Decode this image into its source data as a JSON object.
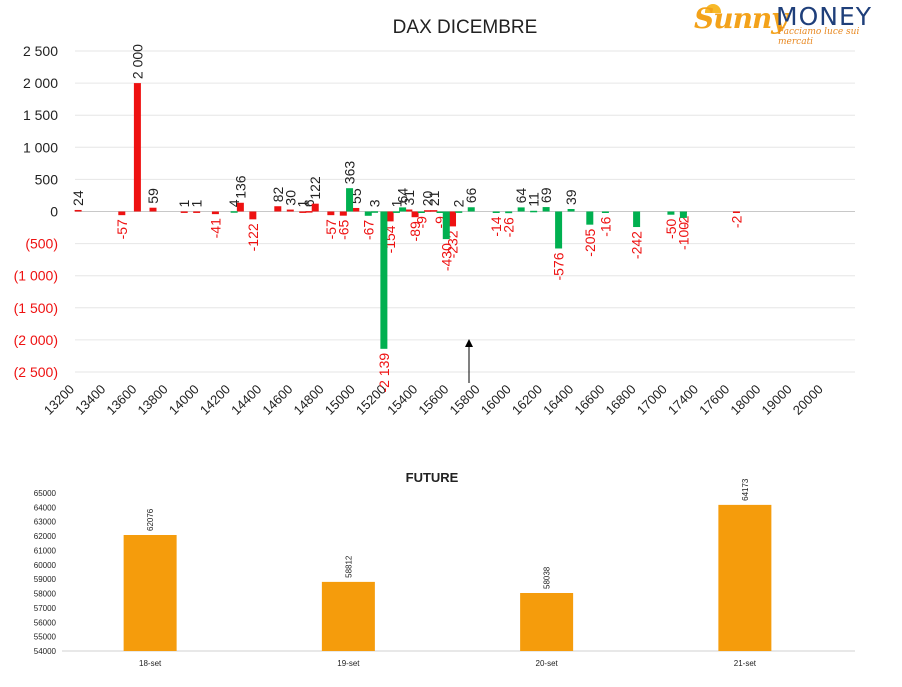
{
  "logo": {
    "brand_left": "Sunny",
    "brand_right": "MONEY",
    "tagline": "Facciamo luce sui mercati"
  },
  "colors": {
    "positive": "#00b050",
    "negative": "#ee1111",
    "future_bar": "#f59c0c",
    "negative_label": "#ee1111",
    "text": "#222222",
    "grid": "#e6e6e6"
  },
  "chart_data": [
    {
      "type": "bar",
      "title": "DAX DICEMBRE",
      "categories": [
        "13200",
        "13400",
        "13600",
        "13800",
        "14000",
        "14200",
        "14400",
        "14600",
        "14800",
        "15000",
        "15200",
        "15400",
        "15600",
        "15800",
        "16000",
        "16200",
        "16400",
        "16600",
        "16800",
        "17000",
        "17400",
        "17600",
        "18000",
        "19000",
        "20000"
      ],
      "ylim": [
        -2500,
        2500
      ],
      "yticks": [
        2500,
        2000,
        1500,
        1000,
        500,
        0,
        -500,
        -1000,
        -1500,
        -2000,
        -2500
      ],
      "ytick_labels": [
        "2 500",
        "2 000",
        "1 500",
        "1 000",
        "500",
        "0",
        "(500)",
        "(1 000)",
        "(1 500)",
        "(2 000)",
        "(2 500)"
      ],
      "grid": true,
      "annotation": "arrow pointing up near 15600",
      "series": [
        {
          "color": "red",
          "points": [
            {
              "x": 0.1,
              "value": 24
            },
            {
              "x": 1.5,
              "value": -57
            },
            {
              "x": 2.0,
              "value": 2000
            },
            {
              "x": 2.5,
              "value": 59
            },
            {
              "x": 3.5,
              "value": 1
            },
            {
              "x": 3.9,
              "value": 1
            },
            {
              "x": 4.5,
              "value": -41
            },
            {
              "x": 5.3,
              "value": 136
            },
            {
              "x": 5.7,
              "value": -122
            },
            {
              "x": 6.5,
              "value": 82
            },
            {
              "x": 6.9,
              "value": 30
            },
            {
              "x": 7.3,
              "value": 1
            },
            {
              "x": 7.5,
              "value": 6
            },
            {
              "x": 7.7,
              "value": 122
            },
            {
              "x": 8.2,
              "value": -57
            },
            {
              "x": 8.6,
              "value": -65
            },
            {
              "x": 9.0,
              "value": 55
            },
            {
              "x": 10.1,
              "value": -154
            },
            {
              "x": 10.7,
              "value": 31
            },
            {
              "x": 10.9,
              "value": -89
            },
            {
              "x": 11.3,
              "value": 20
            },
            {
              "x": 11.5,
              "value": 21
            },
            {
              "x": 12.1,
              "value": -232
            },
            {
              "x": 19.5,
              "value": -2
            },
            {
              "x": 21.2,
              "value": -2
            }
          ]
        },
        {
          "color": "green",
          "points": [
            {
              "x": 5.1,
              "value": 4
            },
            {
              "x": 8.8,
              "value": 363
            },
            {
              "x": 9.4,
              "value": -67
            },
            {
              "x": 9.6,
              "value": 3
            },
            {
              "x": 9.9,
              "value": -2139
            },
            {
              "x": 10.3,
              "value": 1
            },
            {
              "x": 10.5,
              "value": 64
            },
            {
              "x": 11.1,
              "value": -9
            },
            {
              "x": 11.7,
              "value": -9
            },
            {
              "x": 11.9,
              "value": -430
            },
            {
              "x": 12.3,
              "value": 2
            },
            {
              "x": 12.7,
              "value": 66
            },
            {
              "x": 13.5,
              "value": -14
            },
            {
              "x": 13.9,
              "value": -26
            },
            {
              "x": 14.3,
              "value": 64
            },
            {
              "x": 14.7,
              "value": 11
            },
            {
              "x": 15.1,
              "value": 69
            },
            {
              "x": 15.5,
              "value": -576
            },
            {
              "x": 15.9,
              "value": 39
            },
            {
              "x": 16.5,
              "value": -205
            },
            {
              "x": 17.0,
              "value": -16
            },
            {
              "x": 18.0,
              "value": -242
            },
            {
              "x": 19.1,
              "value": -50
            },
            {
              "x": 19.5,
              "value": -100
            }
          ]
        }
      ]
    },
    {
      "type": "bar",
      "title": "FUTURE",
      "categories": [
        "18-set",
        "19-set",
        "20-set",
        "21-set"
      ],
      "values": [
        62076,
        58812,
        58038,
        64173
      ],
      "ylim": [
        54000,
        65000
      ],
      "yticks": [
        65000,
        64000,
        63000,
        62000,
        61000,
        60000,
        59000,
        58000,
        57000,
        56000,
        55000,
        54000
      ],
      "grid": false
    }
  ]
}
